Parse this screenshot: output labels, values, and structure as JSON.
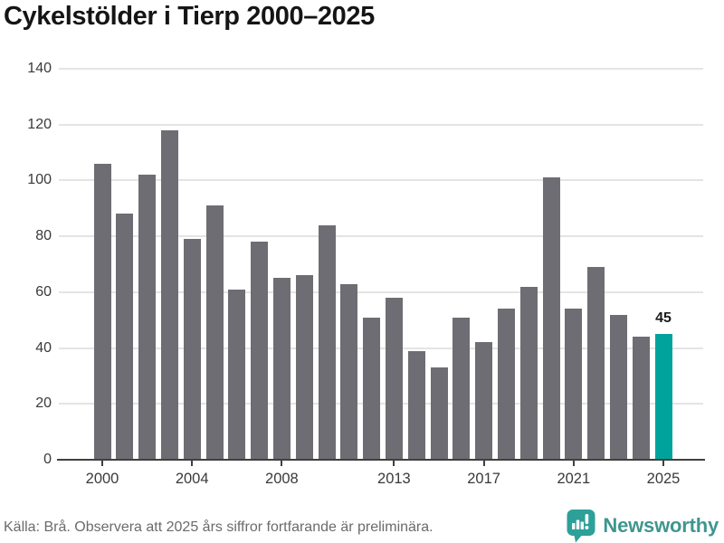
{
  "title": "Cykelstölder i Tierp 2000–2025",
  "chart_data": {
    "type": "bar",
    "title": "Cykelstölder i Tierp 2000–2025",
    "x": [
      2000,
      2001,
      2002,
      2003,
      2004,
      2005,
      2006,
      2007,
      2008,
      2009,
      2010,
      2011,
      2012,
      2013,
      2014,
      2015,
      2016,
      2017,
      2018,
      2019,
      2020,
      2021,
      2022,
      2023,
      2024,
      2025
    ],
    "values": [
      106,
      88,
      102,
      118,
      79,
      91,
      61,
      78,
      65,
      66,
      84,
      63,
      51,
      58,
      39,
      33,
      51,
      42,
      54,
      62,
      101,
      54,
      69,
      52,
      44,
      45
    ],
    "ylim": [
      0,
      140
    ],
    "y_ticks": [
      0,
      20,
      40,
      60,
      80,
      100,
      120,
      140
    ],
    "x_ticks": [
      2000,
      2004,
      2008,
      2013,
      2017,
      2021,
      2025
    ],
    "grid": true,
    "legend": "none",
    "highlight_year": 2025,
    "highlight_value_label": "45",
    "colors": {
      "bar": "#6e6d73",
      "highlight": "#00a39b",
      "gridline": "#e4e4e4",
      "axis": "#404040",
      "tick_label": "#3a3a3a"
    }
  },
  "footer": {
    "source_text": "Källa: Brå. Observera att 2025 års siffror fortfarande är preliminära.",
    "logo_text": "Newsworthy",
    "logo_color": "#3f968e",
    "logo_icon_color": "#2da09a"
  }
}
